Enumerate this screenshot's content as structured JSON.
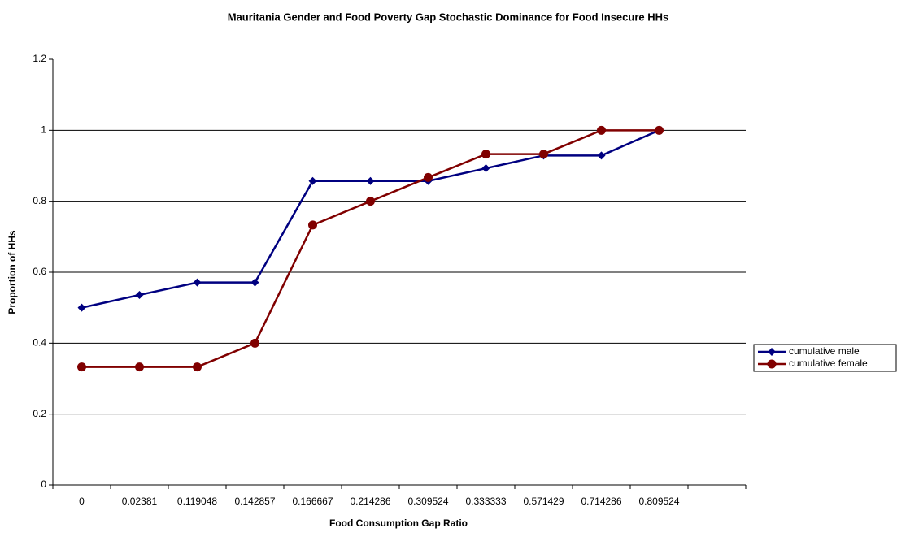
{
  "chart_data": {
    "type": "line",
    "title": "Mauritania Gender and Food Poverty Gap Stochastic Dominance for Food Insecure HHs",
    "x_label": "Food Consumption Gap Ratio",
    "y_label": "Proportion of HHs",
    "categories": [
      "0",
      "0.02381",
      "0.119048",
      "0.142857",
      "0.166667",
      "0.214286",
      "0.309524",
      "0.333333",
      "0.571429",
      "0.714286",
      "0.809524",
      null
    ],
    "series": [
      {
        "name": "cumulative male",
        "color": "#000080",
        "marker": "diamond",
        "values": [
          0.5,
          0.536,
          0.571,
          0.571,
          0.857,
          0.857,
          0.857,
          0.893,
          0.929,
          0.929,
          1.0,
          null
        ]
      },
      {
        "name": "cumulative female",
        "color": "#800000",
        "marker": "circle",
        "values": [
          0.333,
          0.333,
          0.333,
          0.4,
          0.733,
          0.8,
          0.867,
          0.933,
          0.933,
          1.0,
          1.0,
          null
        ]
      }
    ],
    "ylim": [
      0,
      1.2
    ],
    "yticks": [
      0,
      0.2,
      0.4,
      0.6,
      0.8,
      1,
      1.2
    ],
    "grid": true,
    "legend": "right"
  }
}
